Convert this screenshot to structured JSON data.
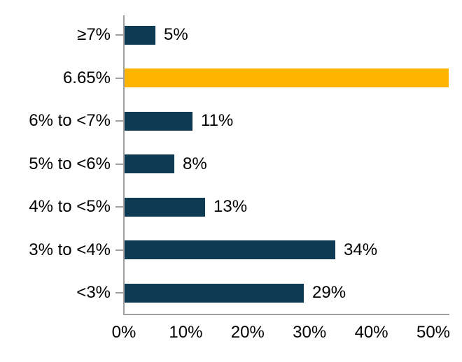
{
  "chart_data": {
    "type": "bar",
    "orientation": "horizontal",
    "title": "",
    "xlabel": "",
    "ylabel": "",
    "categories": [
      "≥7%",
      "6.65%",
      "6% to <7%",
      "5% to <6%",
      "4% to <5%",
      "3% to <4%",
      "<3%"
    ],
    "values": [
      5,
      null,
      11,
      8,
      13,
      34,
      29
    ],
    "data_labels": [
      "5%",
      "",
      "11%",
      "8%",
      "13%",
      "34%",
      "29%"
    ],
    "highlight_bar": {
      "index": 1,
      "category": "6.65%",
      "meaning": "reference bar spanning the full width of the plot area, no data label",
      "rendered_length_axis_units": 52.4,
      "color": "#FFB400"
    },
    "bar_color": "#0E3A54",
    "axis_color": "#A0A0A0",
    "text_color": "#000000",
    "x_tick_labels": [
      "0%",
      "10%",
      "20%",
      "30%",
      "40%",
      "50%"
    ],
    "x_tick_values": [
      0,
      10,
      20,
      30,
      40,
      50
    ],
    "x_range": [
      0,
      52.4
    ],
    "grid": false,
    "legend": false
  }
}
